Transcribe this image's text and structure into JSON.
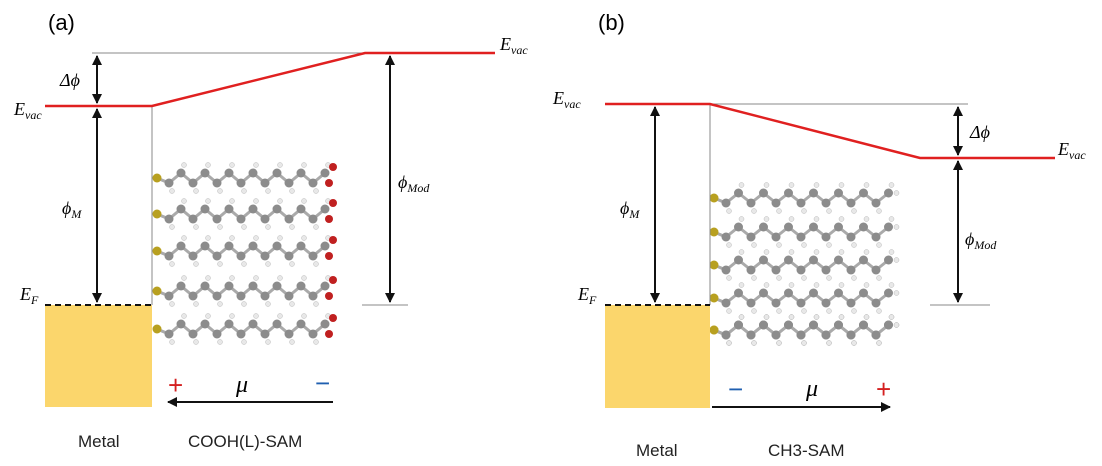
{
  "panel_a": {
    "tag": "(a)",
    "e_vac_left": {
      "symbol": "E",
      "subscript": "vac"
    },
    "e_vac_right": {
      "symbol": "E",
      "subscript": "vac"
    },
    "delta_phi": "Δϕ",
    "phi_m": {
      "symbol": "ϕ",
      "subscript": "M"
    },
    "phi_mod": {
      "symbol": "ϕ",
      "subscript": "Mod"
    },
    "e_f": {
      "symbol": "E",
      "subscript": "F"
    },
    "plus": "+",
    "minus": "−",
    "dipole": "μ⃗",
    "metal_label": "Metal",
    "sam_label": "COOH(L)-SAM"
  },
  "panel_b": {
    "tag": "(b)",
    "e_vac_left": {
      "symbol": "E",
      "subscript": "vac"
    },
    "e_vac_right": {
      "symbol": "E",
      "subscript": "vac"
    },
    "delta_phi": "Δϕ",
    "phi_m": {
      "symbol": "ϕ",
      "subscript": "M"
    },
    "phi_mod": {
      "symbol": "ϕ",
      "subscript": "Mod"
    },
    "e_f": {
      "symbol": "E",
      "subscript": "F"
    },
    "minus": "−",
    "dipole": "μ⃗",
    "plus": "+",
    "metal_label": "Metal",
    "sam_label": "CH3-SAM"
  }
}
